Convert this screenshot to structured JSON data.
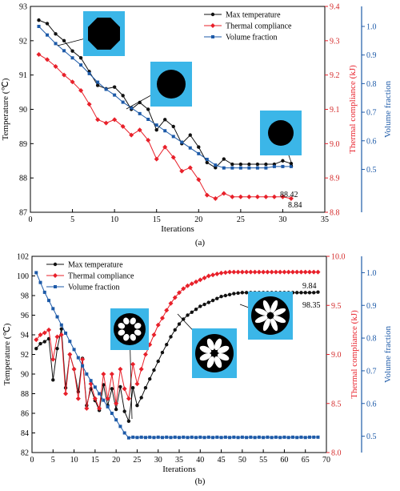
{
  "colors": {
    "max_temperature": "#111111",
    "thermal_compliance": "#e8202a",
    "volume_fraction": "#1d5aa8",
    "inset_background": "#3bb6e8"
  },
  "chart_data": [
    {
      "type": "line",
      "caption": "(a)",
      "xlabel": "Iterations",
      "ylabel_left": "Temperature (℃)",
      "ylabel_right1": "Thermal compliance (kJ)",
      "ylabel_right2": "Volume fraction",
      "xlim": [
        0,
        35
      ],
      "xticks": [
        0,
        5,
        10,
        15,
        20,
        25,
        30,
        35
      ],
      "ylim_left": [
        87,
        93
      ],
      "yticks_left": [
        87,
        88,
        89,
        90,
        91,
        92,
        93
      ],
      "ylim_right1": [
        8.8,
        9.4
      ],
      "yticks_right1": [
        "8.8",
        "8.9",
        "9.0",
        "9.1",
        "9.2",
        "9.3",
        "9.4"
      ],
      "ylim_right2": [
        0.35,
        1.07
      ],
      "yticks_right2": [
        "0.5",
        "0.6",
        "0.7",
        "0.8",
        "0.9",
        "1.0"
      ],
      "legend": [
        "Max temperature",
        "Thermal compliance",
        "Volume fraction"
      ],
      "x": [
        1,
        2,
        3,
        4,
        5,
        6,
        7,
        8,
        9,
        10,
        11,
        12,
        13,
        14,
        15,
        16,
        17,
        18,
        19,
        20,
        21,
        22,
        23,
        24,
        25,
        26,
        27,
        28,
        29,
        30,
        31
      ],
      "series": [
        {
          "name": "Max temperature",
          "axis": "left",
          "values": [
            92.6,
            92.5,
            92.2,
            92.0,
            91.7,
            91.5,
            91.1,
            90.7,
            90.6,
            90.65,
            90.4,
            90.0,
            90.2,
            90.0,
            89.4,
            89.7,
            89.5,
            89.0,
            89.25,
            88.9,
            88.45,
            88.3,
            88.55,
            88.4,
            88.4,
            88.4,
            88.4,
            88.4,
            88.4,
            88.5,
            88.42
          ]
        },
        {
          "name": "Thermal compliance",
          "axis": "right1",
          "values": [
            9.26,
            9.245,
            9.225,
            9.2,
            9.18,
            9.155,
            9.115,
            9.07,
            9.06,
            9.07,
            9.05,
            9.025,
            9.04,
            9.01,
            8.955,
            8.99,
            8.96,
            8.92,
            8.93,
            8.895,
            8.85,
            8.84,
            8.855,
            8.845,
            8.845,
            8.845,
            8.845,
            8.845,
            8.845,
            8.845,
            8.84
          ]
        },
        {
          "name": "Volume fraction",
          "axis": "right2",
          "values": [
            1.0,
            0.97,
            0.94,
            0.915,
            0.89,
            0.865,
            0.835,
            0.805,
            0.78,
            0.76,
            0.735,
            0.715,
            0.695,
            0.675,
            0.655,
            0.635,
            0.615,
            0.595,
            0.575,
            0.555,
            0.535,
            0.515,
            0.505,
            0.505,
            0.505,
            0.505,
            0.505,
            0.505,
            0.51,
            0.51,
            0.51
          ]
        }
      ],
      "annotations": [
        "88.42",
        "8.84"
      ]
    },
    {
      "type": "line",
      "caption": "(b)",
      "xlabel": "Iterations",
      "ylabel_left": "Temperature (℃)",
      "ylabel_right1": "Thermal compliance (kJ)",
      "ylabel_right2": "Volume fraction",
      "xlim": [
        0,
        70
      ],
      "xticks": [
        0,
        5,
        10,
        15,
        20,
        25,
        30,
        35,
        40,
        45,
        50,
        55,
        60,
        65,
        70
      ],
      "ylim_left": [
        82,
        102
      ],
      "yticks_left": [
        82,
        84,
        86,
        88,
        90,
        92,
        94,
        96,
        98,
        100,
        102
      ],
      "ylim_right1": [
        8.0,
        10.0
      ],
      "yticks_right1": [
        "8.0",
        "8.5",
        "9.0",
        "9.5",
        "10.0"
      ],
      "ylim_right2": [
        0.45,
        1.05
      ],
      "yticks_right2": [
        "0.5",
        "0.6",
        "0.7",
        "0.8",
        "0.9",
        "1.0"
      ],
      "legend": [
        "Max temperature",
        "Thermal compliance",
        "Volume fraction"
      ],
      "x": [
        1,
        2,
        3,
        4,
        5,
        6,
        7,
        8,
        9,
        10,
        11,
        12,
        13,
        14,
        15,
        16,
        17,
        18,
        19,
        20,
        21,
        22,
        23,
        24,
        25,
        26,
        27,
        28,
        29,
        30,
        31,
        32,
        33,
        34,
        35,
        36,
        37,
        38,
        39,
        40,
        41,
        42,
        43,
        44,
        45,
        46,
        47,
        48,
        49,
        50,
        51,
        52,
        53,
        54,
        55,
        56,
        57,
        58,
        59,
        60,
        61,
        62,
        63,
        64,
        65,
        66,
        67,
        68
      ],
      "series": [
        {
          "name": "Max temperature",
          "axis": "left",
          "values": [
            92.6,
            93.1,
            93.3,
            93.6,
            89.4,
            92.6,
            94.6,
            88.6,
            92.0,
            90.5,
            88.2,
            91.6,
            86.8,
            88.5,
            87.3,
            86.3,
            88.9,
            86.8,
            88.5,
            86.4,
            88.7,
            86.2,
            85.2,
            88.6,
            86.8,
            87.6,
            88.6,
            89.5,
            90.4,
            91.3,
            92.2,
            93.0,
            93.8,
            94.5,
            95.1,
            95.6,
            96.0,
            96.3,
            96.6,
            96.9,
            97.1,
            97.3,
            97.5,
            97.7,
            97.9,
            98.0,
            98.1,
            98.2,
            98.25,
            98.3,
            98.3,
            98.3,
            98.3,
            98.3,
            98.3,
            98.3,
            98.3,
            98.3,
            98.3,
            98.3,
            98.3,
            98.3,
            98.3,
            98.3,
            98.3,
            98.3,
            98.3,
            98.35
          ]
        },
        {
          "name": "Thermal compliance",
          "axis": "right1",
          "values": [
            9.15,
            9.2,
            9.22,
            9.25,
            8.95,
            9.18,
            9.2,
            8.6,
            9.0,
            8.85,
            8.55,
            8.95,
            8.45,
            8.7,
            8.55,
            8.45,
            8.8,
            8.55,
            8.8,
            8.5,
            8.85,
            8.65,
            8.55,
            8.9,
            8.7,
            8.85,
            9.0,
            9.1,
            9.2,
            9.3,
            9.37,
            9.45,
            9.52,
            9.58,
            9.63,
            9.67,
            9.7,
            9.72,
            9.74,
            9.76,
            9.78,
            9.8,
            9.81,
            9.82,
            9.83,
            9.835,
            9.84,
            9.84,
            9.84,
            9.84,
            9.84,
            9.84,
            9.84,
            9.84,
            9.84,
            9.84,
            9.84,
            9.84,
            9.84,
            9.84,
            9.84,
            9.84,
            9.84,
            9.84,
            9.84,
            9.84,
            9.84,
            9.84
          ]
        },
        {
          "name": "Volume fraction",
          "axis": "right2",
          "values": [
            1.0,
            0.97,
            0.94,
            0.915,
            0.89,
            0.865,
            0.84,
            0.815,
            0.79,
            0.765,
            0.74,
            0.715,
            0.69,
            0.67,
            0.65,
            0.63,
            0.61,
            0.59,
            0.57,
            0.55,
            0.53,
            0.51,
            0.495,
            0.497,
            0.496,
            0.497,
            0.496,
            0.497,
            0.496,
            0.497,
            0.496,
            0.497,
            0.496,
            0.497,
            0.496,
            0.497,
            0.496,
            0.497,
            0.496,
            0.497,
            0.496,
            0.497,
            0.496,
            0.497,
            0.496,
            0.497,
            0.496,
            0.497,
            0.496,
            0.497,
            0.496,
            0.497,
            0.496,
            0.497,
            0.496,
            0.497,
            0.496,
            0.497,
            0.496,
            0.497,
            0.496,
            0.497,
            0.496,
            0.497,
            0.496,
            0.497,
            0.497,
            0.497
          ]
        }
      ],
      "annotations": [
        "9.84",
        "98.35"
      ]
    }
  ]
}
